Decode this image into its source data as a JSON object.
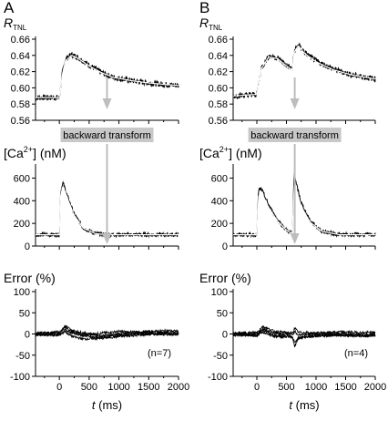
{
  "chart_data": [
    {
      "panel": "A",
      "annotation": "(n=7)",
      "transform_label": "backward transform",
      "transform_time_ms": 800,
      "xlabel": "t (ms)",
      "xlim": [
        -400,
        2000
      ],
      "xticks": [
        "0",
        "500",
        "1000",
        "1500",
        "2000"
      ],
      "subplots": [
        {
          "type": "line",
          "ylabel": "R_TNL",
          "ylim": [
            0.56,
            0.66
          ],
          "yticks": [
            "0.56",
            "0.58",
            "0.60",
            "0.62",
            "0.64",
            "0.66"
          ],
          "series": [
            {
              "role": "measured",
              "x": [
                -400,
                0,
                50,
                100,
                200,
                300,
                500,
                700,
                900,
                1200,
                1500,
                1800,
                2000
              ],
              "values": [
                0.588,
                0.588,
                0.618,
                0.635,
                0.641,
                0.638,
                0.628,
                0.619,
                0.613,
                0.609,
                0.606,
                0.604,
                0.603
              ]
            },
            {
              "role": "fit",
              "x": [
                -400,
                0,
                50,
                100,
                200,
                300,
                500,
                700,
                900,
                1200,
                1500,
                1800,
                2000
              ],
              "values": [
                0.588,
                0.588,
                0.616,
                0.633,
                0.64,
                0.637,
                0.627,
                0.619,
                0.613,
                0.609,
                0.606,
                0.604,
                0.603
              ]
            }
          ]
        },
        {
          "type": "line",
          "ylabel": "[Ca2+] (nM)",
          "ylim": [
            0,
            700
          ],
          "yticks": [
            "0",
            "200",
            "400",
            "600"
          ],
          "series": [
            {
              "role": "measured",
              "x": [
                -400,
                0,
                20,
                60,
                150,
                250,
                400,
                600,
                800,
                1200,
                2000
              ],
              "values": [
                100,
                100,
                470,
                560,
                420,
                280,
                160,
                110,
                100,
                100,
                100
              ]
            },
            {
              "role": "fit",
              "x": [
                -400,
                0,
                20,
                60,
                150,
                250,
                400,
                600,
                800,
                1200,
                2000
              ],
              "values": [
                100,
                100,
                440,
                530,
                400,
                270,
                160,
                110,
                100,
                100,
                100
              ]
            }
          ]
        },
        {
          "type": "line",
          "ylabel": "Error (%)",
          "ylim": [
            -100,
            100
          ],
          "yticks": [
            "-100",
            "-50",
            "0",
            "50",
            "100"
          ],
          "series": [
            {
              "role": "error",
              "x": [
                -400,
                0,
                100,
                200,
                400,
                700,
                1000,
                1400,
                1800,
                2000
              ],
              "values": [
                2,
                4,
                16,
                6,
                -2,
                2,
                6,
                3,
                4,
                2
              ]
            },
            {
              "role": "error",
              "x": [
                -400,
                0,
                100,
                200,
                400,
                700,
                1000,
                1400,
                1800,
                2000
              ],
              "values": [
                -2,
                -3,
                10,
                3,
                -4,
                -8,
                -3,
                2,
                -1,
                0
              ]
            },
            {
              "role": "error",
              "x": [
                -400,
                0,
                100,
                200,
                400,
                700,
                1000,
                1400,
                1800,
                2000
              ],
              "values": [
                1,
                1,
                20,
                9,
                3,
                -4,
                0,
                5,
                8,
                6
              ]
            },
            {
              "role": "error",
              "x": [
                -400,
                0,
                100,
                200,
                400,
                700,
                1000,
                1400,
                1800,
                2000
              ],
              "values": [
                -1,
                -2,
                6,
                -5,
                -12,
                -10,
                -6,
                -2,
                1,
                -2
              ]
            }
          ]
        }
      ]
    },
    {
      "panel": "B",
      "annotation": "(n=4)",
      "transform_label": "backward transform",
      "transform_time_ms": 640,
      "xlabel": "t (ms)",
      "xlim": [
        -400,
        2000
      ],
      "xticks": [
        "0",
        "500",
        "1000",
        "1500",
        "2000"
      ],
      "subplots": [
        {
          "type": "line",
          "ylabel": "R_TNL",
          "ylim": [
            0.56,
            0.66
          ],
          "yticks": [
            "0.56",
            "0.58",
            "0.60",
            "0.62",
            "0.64",
            "0.66"
          ],
          "series": [
            {
              "role": "measured",
              "x": [
                -400,
                0,
                80,
                200,
                350,
                500,
                600,
                630,
                700,
                800,
                1000,
                1300,
                1600,
                2000
              ],
              "values": [
                0.59,
                0.592,
                0.625,
                0.639,
                0.637,
                0.628,
                0.623,
                0.645,
                0.653,
                0.644,
                0.633,
                0.623,
                0.616,
                0.611
              ]
            },
            {
              "role": "fit",
              "x": [
                -400,
                0,
                80,
                200,
                350,
                500,
                600,
                630,
                700,
                800,
                1000,
                1300,
                1600,
                2000
              ],
              "values": [
                0.59,
                0.592,
                0.624,
                0.638,
                0.636,
                0.627,
                0.622,
                0.644,
                0.652,
                0.643,
                0.632,
                0.622,
                0.616,
                0.611
              ]
            }
          ]
        },
        {
          "type": "line",
          "ylabel": "[Ca2+] (nM)",
          "ylim": [
            0,
            700
          ],
          "yticks": [
            "0",
            "200",
            "400",
            "600"
          ],
          "series": [
            {
              "role": "measured",
              "x": [
                -400,
                0,
                30,
                80,
                200,
                350,
                500,
                600,
                630,
                660,
                750,
                900,
                1100,
                1400,
                2000
              ],
              "values": [
                100,
                100,
                500,
                500,
                360,
                230,
                140,
                110,
                660,
                560,
                380,
                220,
                130,
                100,
                100
              ]
            },
            {
              "role": "fit",
              "x": [
                -400,
                0,
                30,
                80,
                200,
                350,
                500,
                600,
                630,
                660,
                750,
                900,
                1100,
                1400,
                2000
              ],
              "values": [
                100,
                100,
                440,
                470,
                340,
                220,
                140,
                110,
                540,
                500,
                350,
                210,
                130,
                100,
                100
              ]
            }
          ]
        },
        {
          "type": "line",
          "ylabel": "Error (%)",
          "ylim": [
            -100,
            100
          ],
          "yticks": [
            "-100",
            "-50",
            "0",
            "50",
            "100"
          ],
          "series": [
            {
              "role": "error",
              "x": [
                -400,
                0,
                100,
                300,
                600,
                640,
                700,
                1000,
                1400,
                1800,
                2000
              ],
              "values": [
                1,
                4,
                18,
                6,
                2,
                14,
                4,
                2,
                5,
                3,
                4
              ]
            },
            {
              "role": "error",
              "x": [
                -400,
                0,
                100,
                300,
                600,
                640,
                700,
                1000,
                1400,
                1800,
                2000
              ],
              "values": [
                -3,
                -2,
                10,
                -4,
                -6,
                -30,
                -8,
                -5,
                -3,
                -4,
                -2
              ]
            },
            {
              "role": "error",
              "x": [
                -400,
                0,
                100,
                300,
                600,
                640,
                700,
                1000,
                1400,
                1800,
                2000
              ],
              "values": [
                2,
                0,
                12,
                2,
                -2,
                6,
                -2,
                0,
                1,
                -1,
                0
              ]
            },
            {
              "role": "error",
              "x": [
                -400,
                0,
                100,
                300,
                600,
                640,
                700,
                1000,
                1400,
                1800,
                2000
              ],
              "values": [
                -1,
                -4,
                4,
                -6,
                -8,
                -20,
                -10,
                -4,
                -2,
                -5,
                -3
              ]
            }
          ]
        }
      ]
    }
  ]
}
